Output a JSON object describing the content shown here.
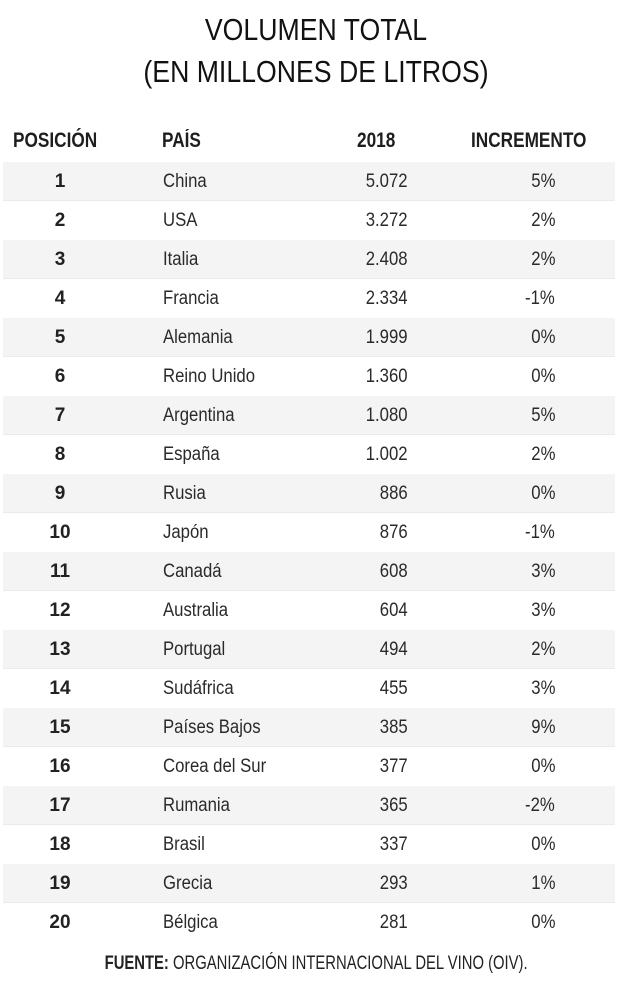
{
  "title": {
    "line1": "VOLUMEN TOTAL",
    "line2": "(EN MILLONES DE LITROS)"
  },
  "table": {
    "headers": {
      "position": "POSICIÓN",
      "country": "PAÍS",
      "year": "2018",
      "increase": "INCREMENTO"
    },
    "rows": [
      {
        "position": "1",
        "country": "China",
        "value": "5.072",
        "increase": "5%"
      },
      {
        "position": "2",
        "country": "USA",
        "value": "3.272",
        "increase": "2%"
      },
      {
        "position": "3",
        "country": "Italia",
        "value": "2.408",
        "increase": "2%"
      },
      {
        "position": "4",
        "country": "Francia",
        "value": "2.334",
        "increase": "-1%"
      },
      {
        "position": "5",
        "country": "Alemania",
        "value": "1.999",
        "increase": "0%"
      },
      {
        "position": "6",
        "country": "Reino Unido",
        "value": "1.360",
        "increase": "0%"
      },
      {
        "position": "7",
        "country": "Argentina",
        "value": "1.080",
        "increase": "5%"
      },
      {
        "position": "8",
        "country": "España",
        "value": "1.002",
        "increase": "2%"
      },
      {
        "position": "9",
        "country": "Rusia",
        "value": "886",
        "increase": "0%"
      },
      {
        "position": "10",
        "country": "Japón",
        "value": "876",
        "increase": "-1%"
      },
      {
        "position": "11",
        "country": "Canadá",
        "value": "608",
        "increase": "3%"
      },
      {
        "position": "12",
        "country": "Australia",
        "value": "604",
        "increase": "3%"
      },
      {
        "position": "13",
        "country": "Portugal",
        "value": "494",
        "increase": "2%"
      },
      {
        "position": "14",
        "country": "Sudáfrica",
        "value": "455",
        "increase": "3%"
      },
      {
        "position": "15",
        "country": "Países Bajos",
        "value": "385",
        "increase": "9%"
      },
      {
        "position": "16",
        "country": "Corea del Sur",
        "value": "377",
        "increase": "0%"
      },
      {
        "position": "17",
        "country": "Rumania",
        "value": "365",
        "increase": "-2%"
      },
      {
        "position": "18",
        "country": "Brasil",
        "value": "337",
        "increase": "0%"
      },
      {
        "position": "19",
        "country": "Grecia",
        "value": "293",
        "increase": "1%"
      },
      {
        "position": "20",
        "country": "Bélgica",
        "value": "281",
        "increase": "0%"
      }
    ]
  },
  "footer": {
    "label": "FUENTE:",
    "text": " ORGANIZACIÓN INTERNACIONAL DEL VINO (OIV)."
  },
  "colors": {
    "shaded_row": "#f4f4f4",
    "text": "#1a1a1a",
    "background": "#ffffff"
  },
  "chart_data": {
    "type": "table",
    "title": "VOLUMEN TOTAL (EN MILLONES DE LITROS)",
    "columns": [
      "POSICIÓN",
      "PAÍS",
      "2018",
      "INCREMENTO"
    ],
    "rows": [
      [
        1,
        "China",
        5072,
        "5%"
      ],
      [
        2,
        "USA",
        3272,
        "2%"
      ],
      [
        3,
        "Italia",
        2408,
        "2%"
      ],
      [
        4,
        "Francia",
        2334,
        "-1%"
      ],
      [
        5,
        "Alemania",
        1999,
        "0%"
      ],
      [
        6,
        "Reino Unido",
        1360,
        "0%"
      ],
      [
        7,
        "Argentina",
        1080,
        "5%"
      ],
      [
        8,
        "España",
        1002,
        "2%"
      ],
      [
        9,
        "Rusia",
        886,
        "0%"
      ],
      [
        10,
        "Japón",
        876,
        "-1%"
      ],
      [
        11,
        "Canadá",
        608,
        "3%"
      ],
      [
        12,
        "Australia",
        604,
        "3%"
      ],
      [
        13,
        "Portugal",
        494,
        "2%"
      ],
      [
        14,
        "Sudáfrica",
        455,
        "3%"
      ],
      [
        15,
        "Países Bajos",
        385,
        "9%"
      ],
      [
        16,
        "Corea del Sur",
        377,
        "0%"
      ],
      [
        17,
        "Rumania",
        365,
        "-2%"
      ],
      [
        18,
        "Brasil",
        337,
        "0%"
      ],
      [
        19,
        "Grecia",
        293,
        "1%"
      ],
      [
        20,
        "Bélgica",
        281,
        "0%"
      ]
    ],
    "categories": [
      "China",
      "USA",
      "Italia",
      "Francia",
      "Alemania",
      "Reino Unido",
      "Argentina",
      "España",
      "Rusia",
      "Japón",
      "Canadá",
      "Australia",
      "Portugal",
      "Sudáfrica",
      "Países Bajos",
      "Corea del Sur",
      "Rumania",
      "Brasil",
      "Grecia",
      "Bélgica"
    ],
    "series": [
      {
        "name": "2018",
        "values": [
          5072,
          3272,
          2408,
          2334,
          1999,
          1360,
          1080,
          1002,
          886,
          876,
          608,
          604,
          494,
          455,
          385,
          377,
          365,
          337,
          293,
          281
        ]
      },
      {
        "name": "INCREMENTO (%)",
        "values": [
          5,
          2,
          2,
          -1,
          0,
          0,
          5,
          2,
          0,
          -1,
          3,
          3,
          2,
          3,
          9,
          0,
          -2,
          0,
          1,
          0
        ]
      }
    ],
    "source": "FUENTE: ORGANIZACIÓN INTERNACIONAL DEL VINO (OIV)."
  }
}
